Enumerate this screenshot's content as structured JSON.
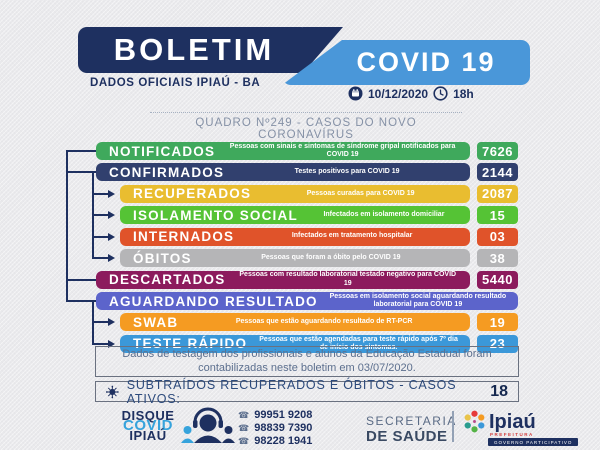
{
  "header": {
    "brand": "BOLETIM",
    "subtitle": "DADOS OFICIAIS IPIAÚ - BA",
    "covid_flag": "COVID 19",
    "date": "10/12/2020",
    "time": "18h",
    "quadro": "QUADRO Nº249 - CASOS DO NOVO CORONAVÍRUS"
  },
  "colors": {
    "navy": "#1e3060",
    "flag_blue": "#4a97d9",
    "disque_cyan": "#36a3dc"
  },
  "rows": [
    {
      "id": "notificados",
      "label": "NOTIFICADOS",
      "desc": "Pessoas com sinais e sintomas de síndrome gripal notificados para COVID 19",
      "value": "7626",
      "color": "#3fa95c",
      "indent": false,
      "full": false
    },
    {
      "id": "confirmados",
      "label": "CONFIRMADOS",
      "desc": "Testes positivos para COVID 19",
      "value": "2144",
      "color": "#31406e",
      "indent": false,
      "full": false
    },
    {
      "id": "recuperados",
      "label": "RECUPERADOS",
      "desc": "Pessoas curadas para COVID 19",
      "value": "2087",
      "color": "#e9bd30",
      "indent": true,
      "full": false
    },
    {
      "id": "isolamento-social",
      "label": "ISOLAMENTO SOCIAL",
      "desc": "Infectados em isolamento domiciliar",
      "value": "15",
      "color": "#55c335",
      "indent": true,
      "full": false
    },
    {
      "id": "internados",
      "label": "INTERNADOS",
      "desc": "Infectados em tratamento hospitalar",
      "value": "03",
      "color": "#e0532a",
      "indent": true,
      "full": false
    },
    {
      "id": "obitos",
      "label": "ÓBITOS",
      "desc": "Pessoas que foram a óbito pelo COVID 19",
      "value": "38",
      "color": "#b5b5b7",
      "indent": true,
      "full": false
    },
    {
      "id": "descartados",
      "label": "DESCARTADOS",
      "desc": "Pessoas com resultado laboratorial testado negativo para COVID 19",
      "value": "5440",
      "color": "#8c1b5d",
      "indent": false,
      "full": false
    },
    {
      "id": "aguardando-resultado",
      "label": "AGUARDANDO RESULTADO",
      "desc": "Pessoas em isolamento social aguardando resultado laboratorial  para COVID 19",
      "value": null,
      "color": "#5c64cb",
      "indent": false,
      "full": true
    },
    {
      "id": "swab",
      "label": "SWAB",
      "desc": "Pessoas que estão aguardando resultado de RT-PCR",
      "value": "19",
      "color": "#f59b22",
      "indent": true,
      "full": false
    },
    {
      "id": "teste-rapido",
      "label": "TESTE RÁPIDO",
      "desc": "Pessoas que estão agendadas para teste rápido após 7º dia de início dos sintomas.",
      "value": "23",
      "color": "#3b98d9",
      "indent": true,
      "full": false
    }
  ],
  "note": {
    "text": "Dados de testagem dos profissionais e alunos da Educação Estadual foram contabilizadas neste boletim em 03/07/2020."
  },
  "active": {
    "label": "SUBTRAÍDOS RECUPERADOS E ÓBITOS - CASOS ATIVOS:",
    "value": "18"
  },
  "footer": {
    "disque": {
      "line1": "DISQUE",
      "line2": "COVID",
      "line3": "IPIAÚ"
    },
    "phone_glyph": "☎",
    "phones": [
      "99951 9208",
      "98839 7390",
      "98228 1941"
    ],
    "secretaria": {
      "line1": "SECRETARIA",
      "line2": "DE SAÚDE"
    },
    "logo": {
      "name": "Ipiaú",
      "sub": "PREFEITURA",
      "banner": "GOVERNO PARTICIPATIVO"
    }
  }
}
